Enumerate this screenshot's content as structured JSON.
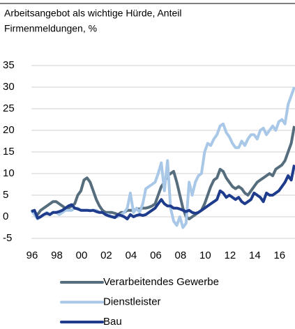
{
  "chart_data": {
    "type": "line",
    "title": [
      "Arbeitsangebot als wichtige Hürde, Anteil",
      "Firmenmeldungen, %"
    ],
    "x": [
      1996,
      1996.25,
      1996.5,
      1996.75,
      1997,
      1997.25,
      1997.5,
      1997.75,
      1998,
      1998.25,
      1998.5,
      1998.75,
      1999,
      1999.25,
      1999.5,
      1999.75,
      2000,
      2000.25,
      2000.5,
      2000.75,
      2001,
      2001.25,
      2001.5,
      2001.75,
      2002,
      2002.25,
      2002.5,
      2002.75,
      2003,
      2003.25,
      2003.5,
      2003.75,
      2004,
      2004.25,
      2004.5,
      2004.75,
      2005,
      2005.25,
      2005.5,
      2005.75,
      2006,
      2006.25,
      2006.5,
      2006.75,
      2007,
      2007.25,
      2007.5,
      2007.75,
      2008,
      2008.25,
      2008.5,
      2008.75,
      2009,
      2009.25,
      2009.5,
      2009.75,
      2010,
      2010.25,
      2010.5,
      2010.75,
      2011,
      2011.25,
      2011.5,
      2011.75,
      2012,
      2012.25,
      2012.5,
      2012.75,
      2013,
      2013.25,
      2013.5,
      2013.75,
      2014,
      2014.25,
      2014.5,
      2014.75,
      2015,
      2015.25,
      2015.5,
      2015.75,
      2016,
      2016.25,
      2016.5,
      2016.75,
      2017,
      2017.25
    ],
    "series": [
      {
        "name": "Verarbeitendes Gewerbe",
        "color": "#566d7e",
        "values": [
          1.5,
          1,
          0.5,
          1.5,
          2,
          2.5,
          3,
          3.5,
          3.5,
          3,
          2.5,
          2,
          2,
          2.5,
          3,
          5,
          6,
          8.5,
          9,
          8,
          6,
          4,
          2.5,
          1.5,
          1,
          1,
          1,
          0.8,
          0.5,
          1,
          1,
          1.5,
          1.5,
          1.5,
          1.8,
          1.8,
          2,
          2,
          2.2,
          2.5,
          3,
          5,
          7,
          8,
          9.5,
          10,
          10.5,
          8,
          5,
          2,
          0,
          -0.5,
          0,
          0.5,
          1,
          1.5,
          3,
          5,
          7,
          8.5,
          9,
          11,
          10.5,
          9,
          8,
          7,
          6.5,
          7,
          6.5,
          5.5,
          5,
          6,
          7,
          8,
          8.5,
          9,
          9.5,
          10,
          9.5,
          11,
          11.5,
          12,
          13,
          15,
          17,
          21
        ]
      },
      {
        "name": "Dienstleister",
        "color": "#a9c8e8",
        "values": [
          1.5,
          0.5,
          -0.5,
          0,
          0.5,
          1,
          0.5,
          1,
          1,
          0.5,
          1,
          1.5,
          1.5,
          1.5,
          2,
          2,
          1.5,
          1.5,
          1.5,
          1.5,
          1.5,
          1.5,
          1,
          1,
          0.5,
          0.5,
          0,
          0,
          0,
          0.5,
          1,
          2,
          5.5,
          1,
          2,
          1,
          3,
          6.5,
          7,
          7.5,
          8,
          10,
          12.5,
          6,
          13,
          2,
          -1,
          -2,
          0,
          -2.5,
          -1.5,
          8,
          5,
          8,
          9.5,
          10,
          15,
          17,
          16.5,
          18,
          19,
          21,
          21.5,
          19.5,
          18.5,
          17,
          16,
          16,
          17.5,
          16.5,
          18,
          19,
          19,
          18,
          20,
          20.5,
          19,
          20,
          21,
          20,
          22,
          22.5,
          21.5,
          26,
          28,
          30
        ]
      },
      {
        "name": "Bau",
        "color": "#1f3c8c",
        "values": [
          1.2,
          1.5,
          -0.3,
          0,
          0.5,
          0.8,
          0.5,
          1,
          1,
          1.2,
          1.5,
          2,
          2.5,
          2.8,
          2,
          1.8,
          1.5,
          1.5,
          1.5,
          1.4,
          1.5,
          1.2,
          1,
          1,
          0.5,
          0.2,
          0,
          -0.2,
          0.5,
          0.3,
          0,
          -0.5,
          0.5,
          0,
          0.3,
          0.5,
          0.3,
          0.5,
          1,
          1.5,
          2,
          3,
          4,
          3,
          2.5,
          2.5,
          2,
          2,
          1.8,
          1.5,
          1.2,
          1.5,
          1,
          0.8,
          1,
          1.5,
          2,
          2.5,
          3,
          3.5,
          4,
          6,
          5.5,
          4.5,
          5,
          4.5,
          4,
          4.5,
          3.5,
          3,
          3.5,
          4,
          5.5,
          5,
          4.5,
          3.5,
          5.5,
          5,
          5,
          5.5,
          6,
          7,
          8,
          9.5,
          8.5,
          12
        ]
      }
    ],
    "xlim": [
      1996,
      2017.25
    ],
    "xticks": [
      {
        "value": 1996,
        "label": "96"
      },
      {
        "value": 1998,
        "label": "98"
      },
      {
        "value": 2000,
        "label": "00"
      },
      {
        "value": 2002,
        "label": "02"
      },
      {
        "value": 2004,
        "label": "04"
      },
      {
        "value": 2006,
        "label": "06"
      },
      {
        "value": 2008,
        "label": "08"
      },
      {
        "value": 2010,
        "label": "10"
      },
      {
        "value": 2012,
        "label": "12"
      },
      {
        "value": 2014,
        "label": "14"
      },
      {
        "value": 2016,
        "label": "16"
      }
    ],
    "ylim": [
      -5,
      35
    ],
    "yticks": [
      -5,
      0,
      5,
      10,
      15,
      20,
      25,
      30,
      35
    ],
    "grid": true
  }
}
